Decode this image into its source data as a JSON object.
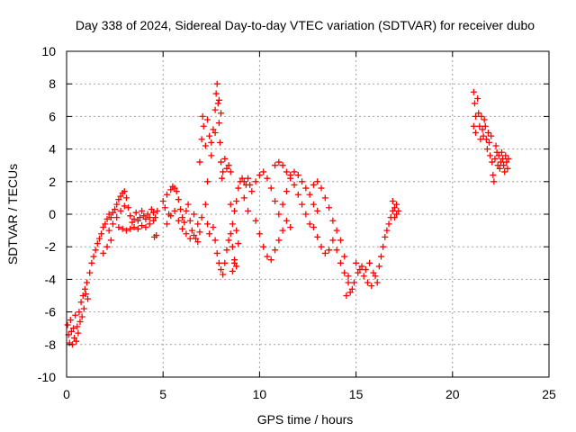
{
  "chart_data": {
    "type": "scatter",
    "title": "Day 338 of 2024, Sidereal Day-to-day VTEC variation (SDTVAR) for receiver dubo",
    "xlabel": "GPS time / hours",
    "ylabel": "SDTVAR / TECUs",
    "xlim": [
      0,
      25
    ],
    "ylim": [
      -10,
      10
    ],
    "x_ticks": [
      0,
      5,
      10,
      15,
      20,
      25
    ],
    "x_tick_labels": [
      "0",
      "5",
      "10",
      "15",
      "20",
      "25"
    ],
    "y_ticks": [
      -10,
      -8,
      -6,
      -4,
      -2,
      0,
      2,
      4,
      6,
      8,
      10
    ],
    "y_tick_labels": [
      "-10",
      "-8",
      "-6",
      "-4",
      "-2",
      "0",
      "2",
      "4",
      "6",
      "8",
      "10"
    ],
    "grid": true,
    "marker": "+",
    "series": [
      {
        "name": "SDTVAR",
        "color": "#ff0000",
        "points": [
          [
            0.05,
            -6.8
          ],
          [
            0.1,
            -7.4
          ],
          [
            0.15,
            -7.9
          ],
          [
            0.2,
            -6.5
          ],
          [
            0.25,
            -7.2
          ],
          [
            0.3,
            -8.0
          ],
          [
            0.35,
            -7.0
          ],
          [
            0.4,
            -7.6
          ],
          [
            0.45,
            -6.2
          ],
          [
            0.5,
            -7.8
          ],
          [
            0.55,
            -6.9
          ],
          [
            0.6,
            -7.3
          ],
          [
            0.65,
            -6.0
          ],
          [
            0.7,
            -6.6
          ],
          [
            0.75,
            -5.4
          ],
          [
            0.8,
            -6.3
          ],
          [
            0.85,
            -5.0
          ],
          [
            0.9,
            -5.8
          ],
          [
            0.95,
            -4.6
          ],
          [
            1.0,
            -4.9
          ],
          [
            1.05,
            -4.2
          ],
          [
            1.1,
            -5.2
          ],
          [
            1.2,
            -3.6
          ],
          [
            1.3,
            -3.0
          ],
          [
            1.4,
            -2.6
          ],
          [
            1.5,
            -2.2
          ],
          [
            1.6,
            -1.8
          ],
          [
            1.7,
            -1.5
          ],
          [
            1.8,
            -1.2
          ],
          [
            1.9,
            -0.8
          ],
          [
            2.0,
            -0.6
          ],
          [
            2.1,
            -0.3
          ],
          [
            2.2,
            0.0
          ],
          [
            2.3,
            -0.2
          ],
          [
            2.4,
            0.1
          ],
          [
            2.5,
            0.3
          ],
          [
            2.6,
            0.6
          ],
          [
            2.7,
            0.9
          ],
          [
            2.8,
            1.1
          ],
          [
            2.9,
            1.3
          ],
          [
            3.0,
            1.4
          ],
          [
            3.1,
            1.0
          ],
          [
            3.2,
            0.4
          ],
          [
            3.3,
            -0.1
          ],
          [
            3.4,
            -0.5
          ],
          [
            3.5,
            -0.3
          ],
          [
            3.6,
            0.1
          ],
          [
            3.7,
            -0.4
          ],
          [
            3.8,
            -0.2
          ],
          [
            3.9,
            0.2
          ],
          [
            4.0,
            -0.1
          ],
          [
            4.1,
            -0.3
          ],
          [
            4.2,
            0.0
          ],
          [
            4.3,
            -0.2
          ],
          [
            4.4,
            0.3
          ],
          [
            4.5,
            0.1
          ],
          [
            4.6,
            -0.2
          ],
          [
            4.7,
            0.2
          ],
          [
            4.55,
            -1.4
          ],
          [
            4.65,
            -1.3
          ],
          [
            2.2,
            -1.0
          ],
          [
            2.4,
            -0.6
          ],
          [
            2.6,
            -0.2
          ],
          [
            2.8,
            0.2
          ],
          [
            3.0,
            0.5
          ],
          [
            2.3,
            -1.6
          ],
          [
            2.1,
            -2.0
          ],
          [
            1.9,
            -2.4
          ],
          [
            2.7,
            -0.8
          ],
          [
            2.9,
            -0.9
          ],
          [
            3.1,
            -1.0
          ],
          [
            3.3,
            -0.9
          ],
          [
            3.5,
            -0.8
          ],
          [
            3.7,
            -0.9
          ],
          [
            3.9,
            -0.7
          ],
          [
            4.1,
            -0.8
          ],
          [
            4.3,
            -0.6
          ],
          [
            4.5,
            -0.4
          ],
          [
            5.0,
            0.8
          ],
          [
            5.1,
            0.4
          ],
          [
            5.2,
            1.2
          ],
          [
            5.3,
            0.0
          ],
          [
            5.4,
            1.5
          ],
          [
            5.5,
            1.7
          ],
          [
            5.6,
            1.6
          ],
          [
            5.7,
            1.4
          ],
          [
            5.8,
            0.9
          ],
          [
            5.9,
            0.3
          ],
          [
            6.0,
            -0.2
          ],
          [
            6.1,
            -0.5
          ],
          [
            6.2,
            0.2
          ],
          [
            6.3,
            0.6
          ],
          [
            6.4,
            -0.4
          ],
          [
            6.5,
            -1.0
          ],
          [
            6.6,
            -1.3
          ],
          [
            6.7,
            -1.5
          ],
          [
            6.8,
            -1.7
          ],
          [
            6.9,
            -1.1
          ],
          [
            5.2,
            -0.6
          ],
          [
            5.4,
            -0.1
          ],
          [
            5.6,
            0.2
          ],
          [
            5.8,
            -0.4
          ],
          [
            6.0,
            -0.9
          ],
          [
            6.2,
            -1.2
          ],
          [
            6.4,
            -1.5
          ],
          [
            6.6,
            0.0
          ],
          [
            6.8,
            -0.6
          ],
          [
            7.0,
            -0.2
          ],
          [
            6.9,
            3.2
          ],
          [
            7.0,
            4.6
          ],
          [
            7.05,
            6.0
          ],
          [
            7.1,
            5.4
          ],
          [
            7.2,
            4.2
          ],
          [
            7.3,
            5.8
          ],
          [
            7.4,
            4.8
          ],
          [
            7.5,
            3.6
          ],
          [
            7.6,
            5.2
          ],
          [
            7.7,
            6.4
          ],
          [
            7.75,
            7.4
          ],
          [
            7.8,
            8.0
          ],
          [
            7.85,
            6.8
          ],
          [
            7.9,
            5.6
          ],
          [
            7.95,
            4.4
          ],
          [
            8.0,
            3.2
          ],
          [
            8.05,
            2.2
          ],
          [
            8.1,
            2.6
          ],
          [
            8.2,
            3.4
          ],
          [
            8.3,
            2.8
          ],
          [
            8.4,
            3.0
          ],
          [
            8.5,
            2.6
          ],
          [
            8.0,
            6.2
          ],
          [
            7.9,
            7.0
          ],
          [
            7.7,
            5.0
          ],
          [
            7.5,
            4.4
          ],
          [
            7.3,
            2.0
          ],
          [
            7.2,
            0.6
          ],
          [
            7.3,
            -0.6
          ],
          [
            7.4,
            -1.2
          ],
          [
            7.6,
            -0.8
          ],
          [
            7.7,
            -1.6
          ],
          [
            7.8,
            -2.4
          ],
          [
            7.9,
            -3.0
          ],
          [
            8.0,
            -3.4
          ],
          [
            8.1,
            -3.7
          ],
          [
            8.2,
            -3.0
          ],
          [
            8.3,
            -2.2
          ],
          [
            8.4,
            -1.6
          ],
          [
            8.5,
            -1.2
          ],
          [
            8.6,
            -0.6
          ],
          [
            8.7,
            0.2
          ],
          [
            8.8,
            0.8
          ],
          [
            8.9,
            1.6
          ],
          [
            9.0,
            2.0
          ],
          [
            9.1,
            2.2
          ],
          [
            9.2,
            2.0
          ],
          [
            9.3,
            1.8
          ],
          [
            9.4,
            2.2
          ],
          [
            9.5,
            1.8
          ],
          [
            8.5,
            0.6
          ],
          [
            8.6,
            -2.0
          ],
          [
            8.7,
            -2.8
          ],
          [
            8.8,
            -3.2
          ],
          [
            8.9,
            -1.8
          ],
          [
            8.8,
            -1.0
          ],
          [
            8.7,
            -3.0
          ],
          [
            8.6,
            -3.5
          ],
          [
            9.2,
            1.0
          ],
          [
            9.4,
            0.2
          ],
          [
            9.6,
            1.4
          ],
          [
            9.8,
            2.0
          ],
          [
            10.0,
            2.4
          ],
          [
            10.2,
            2.6
          ],
          [
            10.4,
            2.2
          ],
          [
            10.6,
            1.6
          ],
          [
            10.8,
            0.8
          ],
          [
            11.0,
            0.0
          ],
          [
            11.2,
            0.6
          ],
          [
            11.4,
            1.4
          ],
          [
            11.6,
            2.2
          ],
          [
            11.8,
            2.6
          ],
          [
            12.0,
            2.4
          ],
          [
            12.2,
            2.0
          ],
          [
            12.4,
            1.6
          ],
          [
            12.6,
            1.2
          ],
          [
            12.8,
            0.6
          ],
          [
            13.0,
            0.2
          ],
          [
            9.8,
            -0.4
          ],
          [
            10.0,
            -1.2
          ],
          [
            10.2,
            -2.0
          ],
          [
            10.4,
            -2.6
          ],
          [
            10.6,
            -2.8
          ],
          [
            10.8,
            -2.2
          ],
          [
            11.0,
            -1.6
          ],
          [
            11.2,
            -1.0
          ],
          [
            11.4,
            -0.4
          ],
          [
            11.6,
            -0.8
          ],
          [
            10.8,
            3.0
          ],
          [
            11.0,
            3.2
          ],
          [
            11.2,
            3.0
          ],
          [
            11.4,
            2.6
          ],
          [
            11.6,
            2.4
          ],
          [
            11.8,
            1.8
          ],
          [
            12.0,
            1.2
          ],
          [
            12.2,
            0.6
          ],
          [
            12.4,
            0.0
          ],
          [
            12.6,
            -0.6
          ],
          [
            12.8,
            -0.8
          ],
          [
            13.0,
            -1.4
          ],
          [
            13.2,
            -2.0
          ],
          [
            13.4,
            -2.4
          ],
          [
            13.6,
            -2.2
          ],
          [
            13.8,
            -1.6
          ],
          [
            14.0,
            -2.2
          ],
          [
            14.2,
            -3.0
          ],
          [
            14.4,
            -3.6
          ],
          [
            14.6,
            -4.2
          ],
          [
            12.8,
            1.8
          ],
          [
            13.0,
            2.0
          ],
          [
            13.2,
            1.6
          ],
          [
            13.4,
            1.0
          ],
          [
            13.6,
            0.4
          ],
          [
            13.8,
            -0.4
          ],
          [
            14.0,
            -1.0
          ],
          [
            14.2,
            -1.6
          ],
          [
            14.4,
            -2.6
          ],
          [
            14.6,
            -3.8
          ],
          [
            14.8,
            -4.6
          ],
          [
            14.5,
            -5.0
          ],
          [
            14.7,
            -4.8
          ],
          [
            14.9,
            -4.2
          ],
          [
            15.1,
            -3.6
          ],
          [
            15.3,
            -3.2
          ],
          [
            15.5,
            -3.4
          ],
          [
            15.7,
            -3.0
          ],
          [
            15.9,
            -3.6
          ],
          [
            16.1,
            -4.2
          ],
          [
            15.0,
            -3.0
          ],
          [
            15.2,
            -3.4
          ],
          [
            15.4,
            -3.8
          ],
          [
            15.6,
            -4.2
          ],
          [
            15.8,
            -4.4
          ],
          [
            16.0,
            -3.8
          ],
          [
            16.2,
            -3.2
          ],
          [
            16.3,
            -2.6
          ],
          [
            16.4,
            -2.0
          ],
          [
            16.5,
            -1.4
          ],
          [
            16.6,
            -1.0
          ],
          [
            16.7,
            -0.6
          ],
          [
            16.8,
            -0.2
          ],
          [
            16.9,
            0.2
          ],
          [
            17.0,
            0.4
          ],
          [
            17.1,
            0.6
          ],
          [
            17.2,
            0.2
          ],
          [
            16.9,
            0.8
          ],
          [
            17.0,
            -0.2
          ],
          [
            17.1,
            0.0
          ],
          [
            21.1,
            7.5
          ],
          [
            21.15,
            6.8
          ],
          [
            21.2,
            6.0
          ],
          [
            21.1,
            5.4
          ],
          [
            21.2,
            5.0
          ],
          [
            21.3,
            7.1
          ],
          [
            21.35,
            6.2
          ],
          [
            21.4,
            5.4
          ],
          [
            21.45,
            4.6
          ],
          [
            21.5,
            6.0
          ],
          [
            21.55,
            5.2
          ],
          [
            21.6,
            4.8
          ],
          [
            21.65,
            5.8
          ],
          [
            21.7,
            5.4
          ],
          [
            21.75,
            4.6
          ],
          [
            21.8,
            4.0
          ],
          [
            21.85,
            5.0
          ],
          [
            21.9,
            4.4
          ],
          [
            21.95,
            3.6
          ],
          [
            22.0,
            4.8
          ],
          [
            22.05,
            3.2
          ],
          [
            22.1,
            2.4
          ],
          [
            22.15,
            2.0
          ],
          [
            22.2,
            3.4
          ],
          [
            22.25,
            4.2
          ],
          [
            22.3,
            3.8
          ],
          [
            22.35,
            3.0
          ],
          [
            22.4,
            3.6
          ],
          [
            22.45,
            2.8
          ],
          [
            22.5,
            3.2
          ],
          [
            22.55,
            3.8
          ],
          [
            22.6,
            3.4
          ],
          [
            22.65,
            3.0
          ],
          [
            22.7,
            2.6
          ],
          [
            22.75,
            3.6
          ],
          [
            22.8,
            3.2
          ],
          [
            22.85,
            2.8
          ],
          [
            22.9,
            3.4
          ]
        ]
      }
    ]
  }
}
